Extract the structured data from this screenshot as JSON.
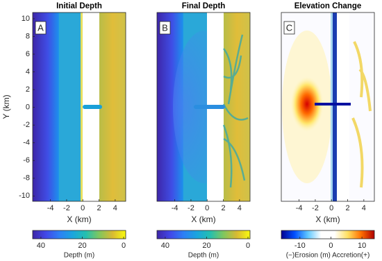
{
  "chart_data": [
    {
      "type": "heatmap",
      "title": "Initial Depth",
      "panel_label": "A",
      "xlabel": "X (km)",
      "ylabel": "Y (km)",
      "xlim": [
        -6.2,
        5.3
      ],
      "ylim": [
        -10.6,
        10.7
      ],
      "xticks": [
        -4,
        -2,
        0,
        2,
        4
      ],
      "yticks": [
        -10,
        -8,
        -6,
        -4,
        -2,
        0,
        2,
        4,
        6,
        8,
        10
      ],
      "colorbar": {
        "label": "Depth (m)",
        "lim": [
          44,
          -1
        ],
        "ticks": [
          40,
          20,
          0
        ],
        "colormap": [
          "#3e26a8",
          "#4148e8",
          "#2d7ff5",
          "#1aa5de",
          "#24bfb0",
          "#7fc75e",
          "#d8ba33",
          "#f9fb0e"
        ]
      }
    },
    {
      "type": "heatmap",
      "title": "Final Depth",
      "panel_label": "B",
      "xlabel": "X (km)",
      "xlim": [
        -6.2,
        5.3
      ],
      "ylim": [
        -10.6,
        10.7
      ],
      "xticks": [
        -4,
        -2,
        0,
        2,
        4
      ],
      "colorbar": {
        "label": "Depth (m)",
        "lim": [
          44,
          -1
        ],
        "ticks": [
          40,
          20,
          0
        ],
        "colormap": [
          "#3e26a8",
          "#4148e8",
          "#2d7ff5",
          "#1aa5de",
          "#24bfb0",
          "#7fc75e",
          "#d8ba33",
          "#f9fb0e"
        ]
      }
    },
    {
      "type": "heatmap",
      "title": "Elevation Change",
      "panel_label": "C",
      "xlabel": "X (km)",
      "xlim": [
        -6.2,
        5.3
      ],
      "ylim": [
        -10.6,
        10.7
      ],
      "xticks": [
        -4,
        -2,
        0,
        2,
        4
      ],
      "colorbar": {
        "label": "(−)Erosion  (m)  Accretion(+)",
        "lim": [
          -16,
          14
        ],
        "ticks": [
          -10,
          0,
          10
        ],
        "colormap": [
          "#00008f",
          "#0050ff",
          "#60c8ff",
          "#ffffff",
          "#ffffff",
          "#ffe060",
          "#ff7000",
          "#b00000"
        ]
      }
    }
  ]
}
